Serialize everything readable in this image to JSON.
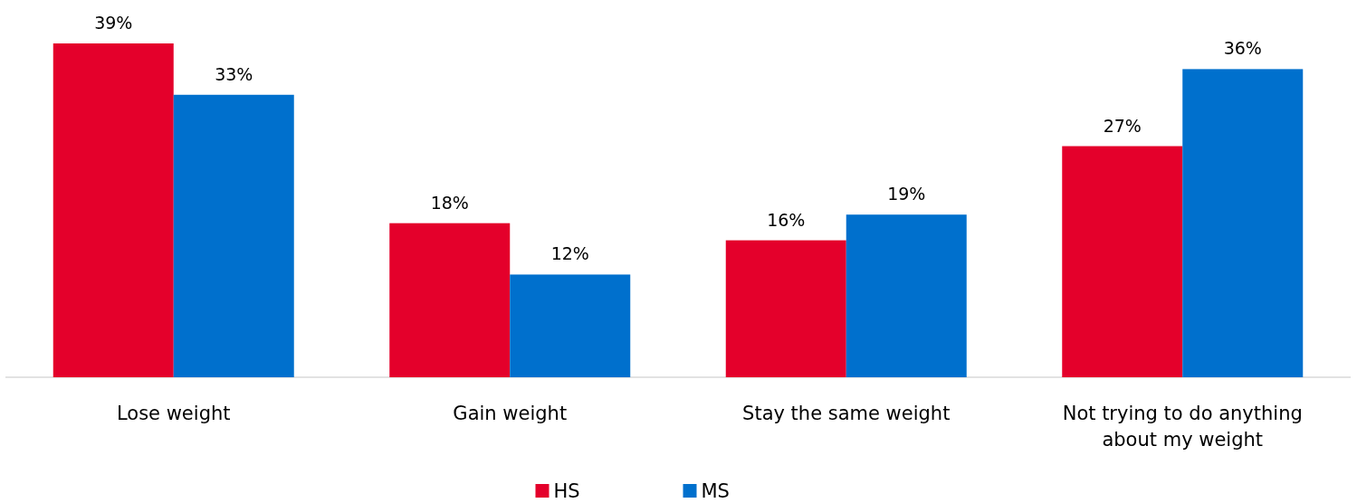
{
  "chart_data": {
    "type": "bar",
    "categories": [
      "Lose weight",
      "Gain weight",
      "Stay the same weight",
      "Not trying to do anything about my weight"
    ],
    "series": [
      {
        "name": "HS",
        "color": "#e4002b",
        "values": [
          39,
          18,
          16,
          27
        ],
        "value_labels": [
          "39%",
          "18%",
          "16%",
          "27%"
        ]
      },
      {
        "name": "MS",
        "color": "#0070cd",
        "values": [
          33,
          12,
          19,
          36
        ],
        "value_labels": [
          "33%",
          "12%",
          "19%",
          "36%"
        ]
      }
    ],
    "legend": "bottom"
  }
}
